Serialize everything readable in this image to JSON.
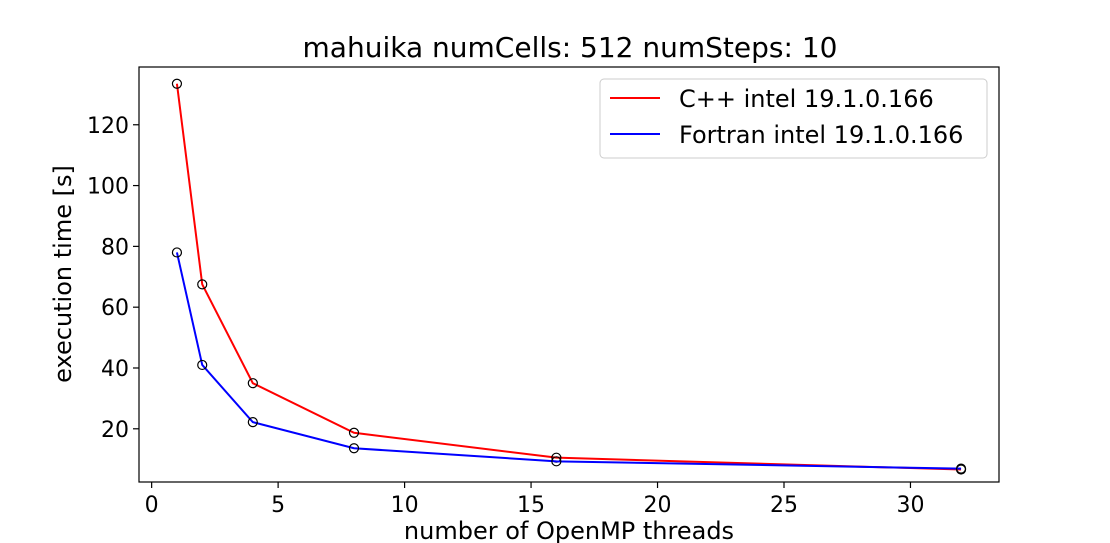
{
  "chart_data": {
    "type": "line",
    "title": "mahuika numCells: 512 numSteps: 10",
    "xlabel": "number of OpenMP threads",
    "ylabel": "execution time [s]",
    "xlim": [
      -0.5,
      33.5
    ],
    "ylim": [
      2.5,
      139
    ],
    "xticks": [
      0,
      5,
      10,
      15,
      20,
      25,
      30
    ],
    "yticks": [
      20,
      40,
      60,
      80,
      100,
      120
    ],
    "grid": false,
    "legend_position": "top-right",
    "markers": "open-circle",
    "x": [
      1,
      2,
      4,
      8,
      16,
      32
    ],
    "series": [
      {
        "name": "C++ intel 19.1.0.166",
        "color": "#ff0000",
        "values": [
          133.5,
          67.5,
          35.0,
          18.7,
          10.5,
          6.6
        ]
      },
      {
        "name": "Fortran intel 19.1.0.166",
        "color": "#0000ff",
        "values": [
          78.0,
          41.0,
          22.2,
          13.6,
          9.3,
          6.9
        ]
      }
    ]
  }
}
